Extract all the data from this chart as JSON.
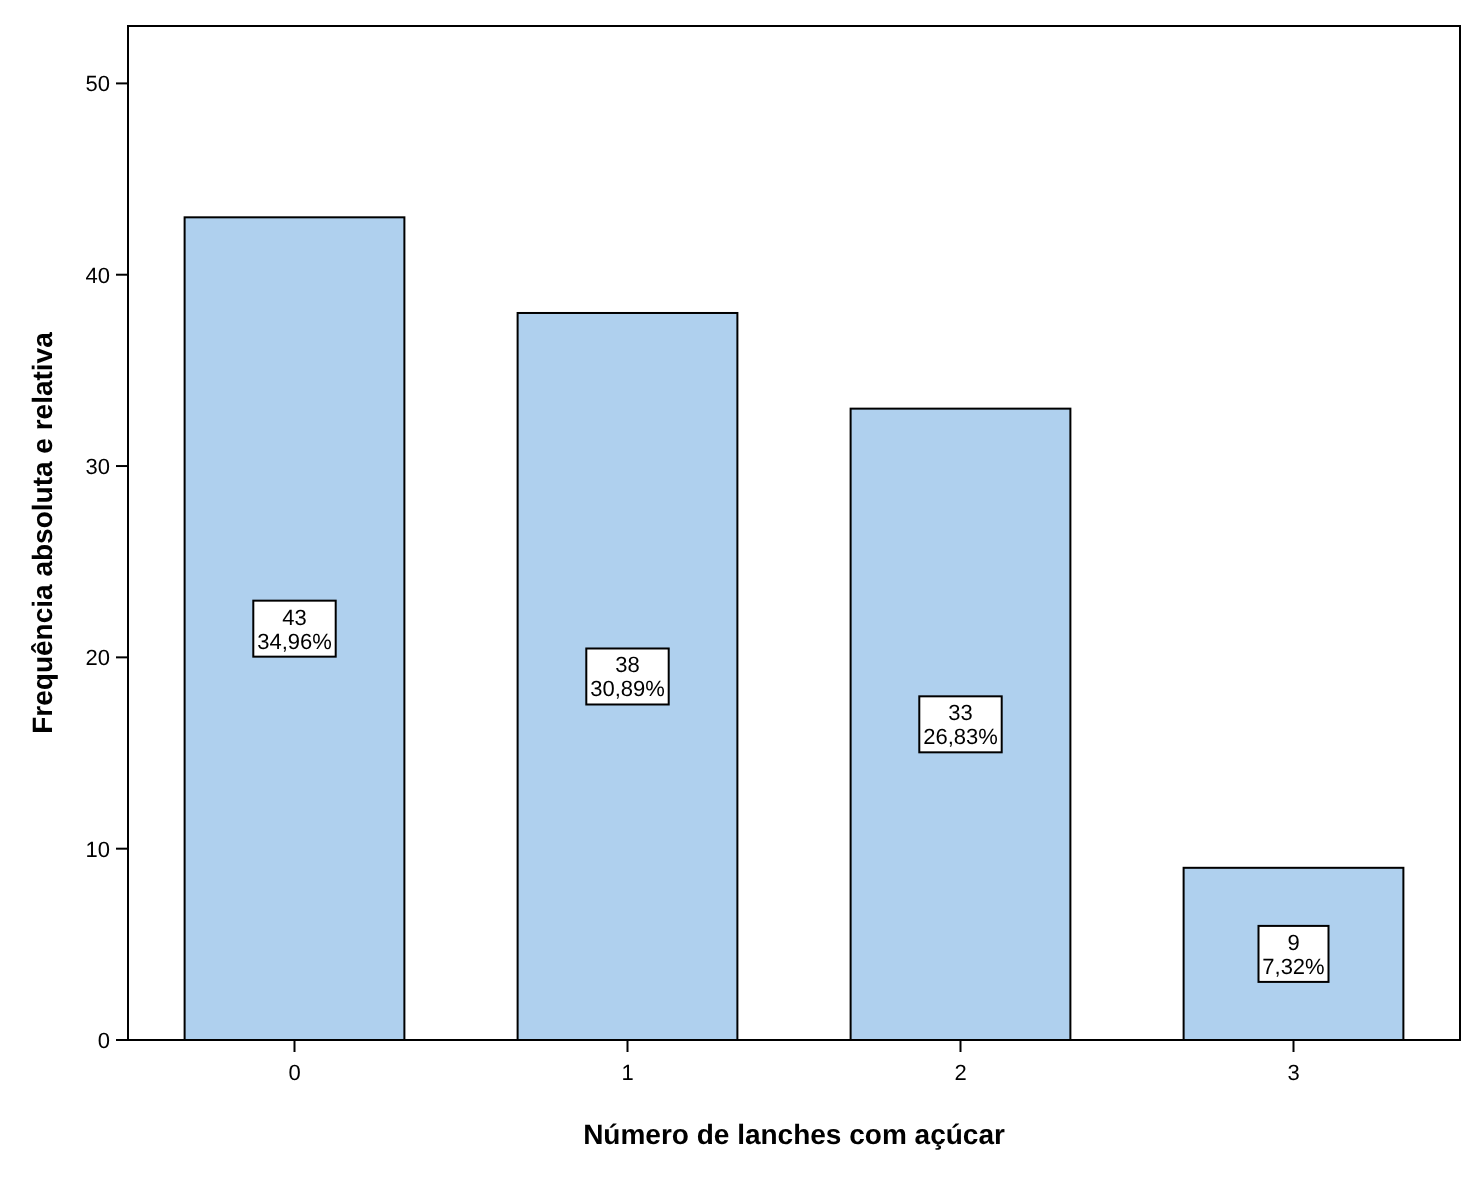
{
  "chart_data": {
    "type": "bar",
    "xlabel": "Número de lanches com açúcar",
    "ylabel": "Frequência absoluta e relativa",
    "categories": [
      "0",
      "1",
      "2",
      "3"
    ],
    "values": [
      43,
      38,
      33,
      9
    ],
    "value_labels": [
      "43\n34,96%",
      "38\n30,89%",
      "33\n26,83%",
      "9\n7,32%"
    ],
    "color": "#afd0ee",
    "ylim": [
      0,
      53
    ],
    "yticks": [
      0,
      10,
      20,
      30,
      40,
      50
    ],
    "grid": false
  }
}
